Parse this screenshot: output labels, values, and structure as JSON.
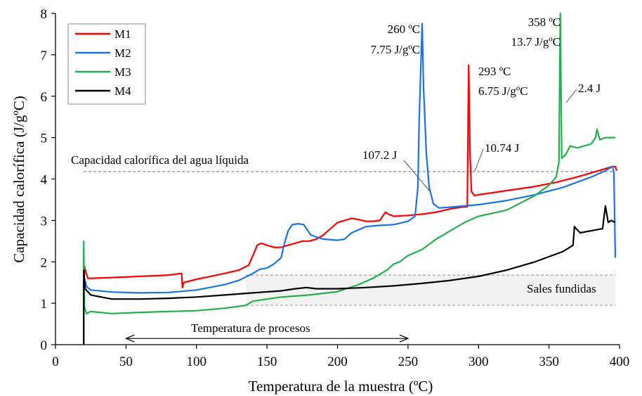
{
  "chart_data": {
    "type": "line",
    "title": "",
    "xlabel": "Temperatura de la muestra (ºC)",
    "ylabel": "Capacidad calorífica (J/gºC)",
    "xlim": [
      0,
      400
    ],
    "ylim": [
      0,
      8
    ],
    "xticks": [
      0,
      50,
      100,
      150,
      200,
      250,
      300,
      350,
      400
    ],
    "yticks": [
      0,
      1,
      2,
      3,
      4,
      5,
      6,
      7,
      8
    ],
    "grid": false,
    "legend_position": "top-left",
    "series": [
      {
        "name": "M1",
        "color": "#ff0000",
        "points": [
          [
            20,
            0.95
          ],
          [
            20.5,
            1.9
          ],
          [
            21.5,
            1.75
          ],
          [
            23,
            1.6
          ],
          [
            40,
            1.62
          ],
          [
            60,
            1.65
          ],
          [
            80,
            1.68
          ],
          [
            89.5,
            1.72
          ],
          [
            90,
            1.38
          ],
          [
            91,
            1.5
          ],
          [
            100,
            1.58
          ],
          [
            110,
            1.65
          ],
          [
            120,
            1.72
          ],
          [
            130,
            1.8
          ],
          [
            137,
            1.92
          ],
          [
            140,
            2.15
          ],
          [
            143,
            2.4
          ],
          [
            146,
            2.45
          ],
          [
            150,
            2.4
          ],
          [
            155,
            2.35
          ],
          [
            160,
            2.35
          ],
          [
            165,
            2.4
          ],
          [
            170,
            2.45
          ],
          [
            175,
            2.5
          ],
          [
            180,
            2.5
          ],
          [
            185,
            2.55
          ],
          [
            190,
            2.65
          ],
          [
            195,
            2.8
          ],
          [
            200,
            2.95
          ],
          [
            205,
            3.0
          ],
          [
            210,
            3.05
          ],
          [
            215,
            3.02
          ],
          [
            220,
            2.98
          ],
          [
            225,
            2.98
          ],
          [
            230,
            3.0
          ],
          [
            232,
            3.1
          ],
          [
            234,
            3.2
          ],
          [
            236,
            3.15
          ],
          [
            240,
            3.1
          ],
          [
            250,
            3.12
          ],
          [
            260,
            3.15
          ],
          [
            270,
            3.2
          ],
          [
            280,
            3.28
          ],
          [
            290,
            3.33
          ],
          [
            292,
            3.33
          ],
          [
            293,
            6.75
          ],
          [
            294,
            4.6
          ],
          [
            295,
            3.7
          ],
          [
            297,
            3.6
          ],
          [
            300,
            3.62
          ],
          [
            320,
            3.72
          ],
          [
            340,
            3.82
          ],
          [
            355,
            3.92
          ],
          [
            370,
            4.05
          ],
          [
            380,
            4.15
          ],
          [
            390,
            4.25
          ],
          [
            395,
            4.3
          ],
          [
            397,
            4.3
          ],
          [
            398,
            4.2
          ]
        ]
      },
      {
        "name": "M2",
        "color": "#1a73e8",
        "points": [
          [
            20,
            1.15
          ],
          [
            20.5,
            1.6
          ],
          [
            22,
            1.4
          ],
          [
            25,
            1.32
          ],
          [
            40,
            1.27
          ],
          [
            60,
            1.25
          ],
          [
            80,
            1.26
          ],
          [
            100,
            1.32
          ],
          [
            120,
            1.45
          ],
          [
            130,
            1.55
          ],
          [
            140,
            1.72
          ],
          [
            145,
            1.82
          ],
          [
            150,
            1.85
          ],
          [
            155,
            1.95
          ],
          [
            160,
            2.1
          ],
          [
            162,
            2.4
          ],
          [
            165,
            2.75
          ],
          [
            168,
            2.9
          ],
          [
            172,
            2.92
          ],
          [
            176,
            2.9
          ],
          [
            178,
            2.8
          ],
          [
            181,
            2.65
          ],
          [
            185,
            2.6
          ],
          [
            190,
            2.55
          ],
          [
            200,
            2.52
          ],
          [
            205,
            2.55
          ],
          [
            210,
            2.7
          ],
          [
            220,
            2.85
          ],
          [
            230,
            2.88
          ],
          [
            240,
            2.9
          ],
          [
            250,
            2.98
          ],
          [
            255,
            3.1
          ],
          [
            257,
            3.8
          ],
          [
            258,
            5.5
          ],
          [
            260,
            7.75
          ],
          [
            261,
            6.2
          ],
          [
            263,
            4.6
          ],
          [
            265,
            3.8
          ],
          [
            268,
            3.4
          ],
          [
            272,
            3.3
          ],
          [
            280,
            3.32
          ],
          [
            300,
            3.38
          ],
          [
            320,
            3.48
          ],
          [
            340,
            3.62
          ],
          [
            360,
            3.8
          ],
          [
            380,
            4.05
          ],
          [
            390,
            4.2
          ],
          [
            395,
            4.3
          ],
          [
            396,
            4.15
          ],
          [
            397,
            2.1
          ]
        ]
      },
      {
        "name": "M3",
        "color": "#22b14c",
        "points": [
          [
            20,
            0.0
          ],
          [
            20,
            2.5
          ],
          [
            20.5,
            0.9
          ],
          [
            22,
            0.75
          ],
          [
            25,
            0.8
          ],
          [
            40,
            0.75
          ],
          [
            60,
            0.78
          ],
          [
            80,
            0.8
          ],
          [
            100,
            0.82
          ],
          [
            120,
            0.88
          ],
          [
            135,
            0.95
          ],
          [
            140,
            1.05
          ],
          [
            150,
            1.1
          ],
          [
            160,
            1.15
          ],
          [
            180,
            1.2
          ],
          [
            200,
            1.28
          ],
          [
            215,
            1.45
          ],
          [
            225,
            1.6
          ],
          [
            235,
            1.8
          ],
          [
            240,
            1.95
          ],
          [
            244,
            2.0
          ],
          [
            250,
            2.15
          ],
          [
            260,
            2.3
          ],
          [
            270,
            2.55
          ],
          [
            280,
            2.75
          ],
          [
            290,
            2.95
          ],
          [
            300,
            3.1
          ],
          [
            320,
            3.25
          ],
          [
            340,
            3.6
          ],
          [
            350,
            3.85
          ],
          [
            355,
            4.05
          ],
          [
            357,
            4.4
          ],
          [
            358,
            13.7
          ],
          [
            359,
            4.5
          ],
          [
            362,
            4.6
          ],
          [
            365,
            4.8
          ],
          [
            370,
            4.75
          ],
          [
            375,
            4.8
          ],
          [
            380,
            4.85
          ],
          [
            383,
            5.0
          ],
          [
            384,
            5.2
          ],
          [
            386,
            4.95
          ],
          [
            390,
            5.0
          ],
          [
            397,
            5.0
          ]
        ]
      },
      {
        "name": "M4",
        "color": "#000000",
        "points": [
          [
            20,
            0.0
          ],
          [
            20,
            1.8
          ],
          [
            21,
            1.35
          ],
          [
            25,
            1.2
          ],
          [
            40,
            1.1
          ],
          [
            60,
            1.1
          ],
          [
            80,
            1.12
          ],
          [
            100,
            1.15
          ],
          [
            120,
            1.2
          ],
          [
            140,
            1.25
          ],
          [
            160,
            1.3
          ],
          [
            170,
            1.35
          ],
          [
            178,
            1.38
          ],
          [
            185,
            1.35
          ],
          [
            200,
            1.35
          ],
          [
            220,
            1.38
          ],
          [
            240,
            1.42
          ],
          [
            260,
            1.48
          ],
          [
            280,
            1.55
          ],
          [
            300,
            1.65
          ],
          [
            320,
            1.8
          ],
          [
            340,
            2.0
          ],
          [
            360,
            2.25
          ],
          [
            367,
            2.4
          ],
          [
            368,
            2.85
          ],
          [
            372,
            2.7
          ],
          [
            380,
            2.75
          ],
          [
            388,
            2.8
          ],
          [
            390,
            3.35
          ],
          [
            392,
            2.95
          ],
          [
            394,
            3.0
          ],
          [
            397,
            2.95
          ]
        ]
      }
    ],
    "reference_lines": [
      {
        "label": "Capacidad calorífica del agua líquida",
        "y": 4.18,
        "x_from": 20,
        "x_to": 397
      }
    ],
    "shaded_band": {
      "label": "Sales fundidas",
      "y_from": 0.95,
      "y_to": 1.68,
      "x_from": 135,
      "x_to": 397
    },
    "range_arrow": {
      "label": "Temperatura de procesos",
      "x_from": 50,
      "x_to": 250,
      "y": 0.15
    },
    "annotations": [
      {
        "lines": [
          "260 ºC",
          "7.75 J/gºC"
        ]
      },
      {
        "lines": [
          "293 ºC",
          "6.75 J/gºC"
        ]
      },
      {
        "lines": [
          "358 ºC",
          "13.7 J/gºC"
        ]
      },
      {
        "lines": [
          "107.2 J"
        ]
      },
      {
        "lines": [
          "10.74 J"
        ]
      },
      {
        "lines": [
          "2.4 J"
        ]
      }
    ]
  }
}
